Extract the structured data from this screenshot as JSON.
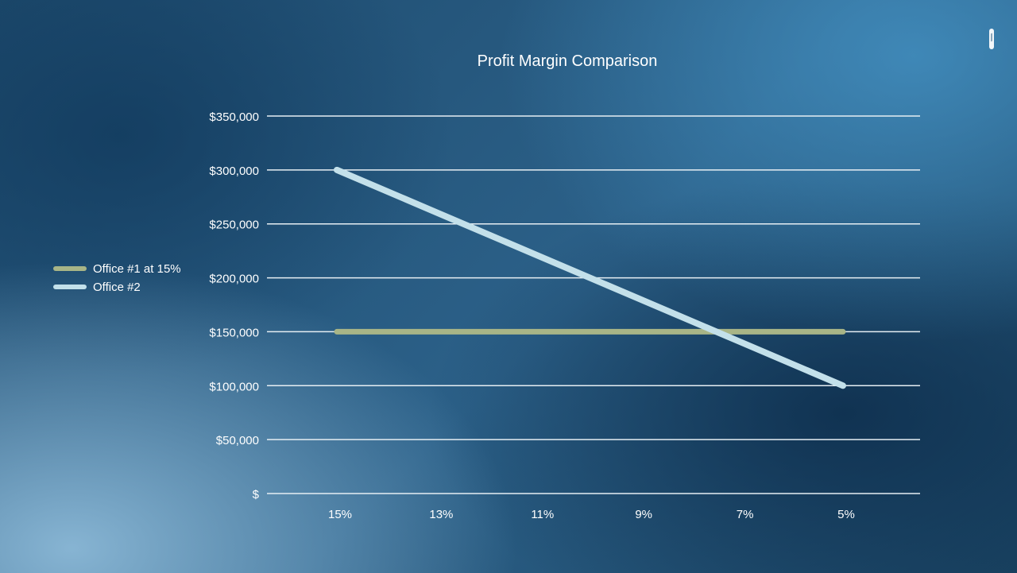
{
  "chart_data": {
    "type": "line",
    "title": "Profit Margin Comparison",
    "xlabel": "",
    "ylabel": "",
    "categories": [
      "15%",
      "13%",
      "11%",
      "9%",
      "7%",
      "5%"
    ],
    "y_ticks": [
      0,
      50000,
      100000,
      150000,
      200000,
      250000,
      300000,
      350000
    ],
    "y_tick_labels": [
      "$",
      "$50,000",
      "$100,000",
      "$150,000",
      "$200,000",
      "$250,000",
      "$300,000",
      "$350,000"
    ],
    "ylim": [
      0,
      350000
    ],
    "grid": true,
    "legend_position": "left",
    "series": [
      {
        "name": "Office #1 at 15%",
        "color": "#a8b587",
        "values": [
          150000,
          150000,
          150000,
          150000,
          150000,
          150000
        ]
      },
      {
        "name": "Office #2",
        "color": "#c3e0ea",
        "values": [
          300000,
          260000,
          220000,
          180000,
          140000,
          100000
        ]
      }
    ]
  },
  "colors": {
    "gridline": "#e6eef3",
    "text": "#ffffff"
  },
  "icons": {
    "corner": "pen-icon"
  }
}
